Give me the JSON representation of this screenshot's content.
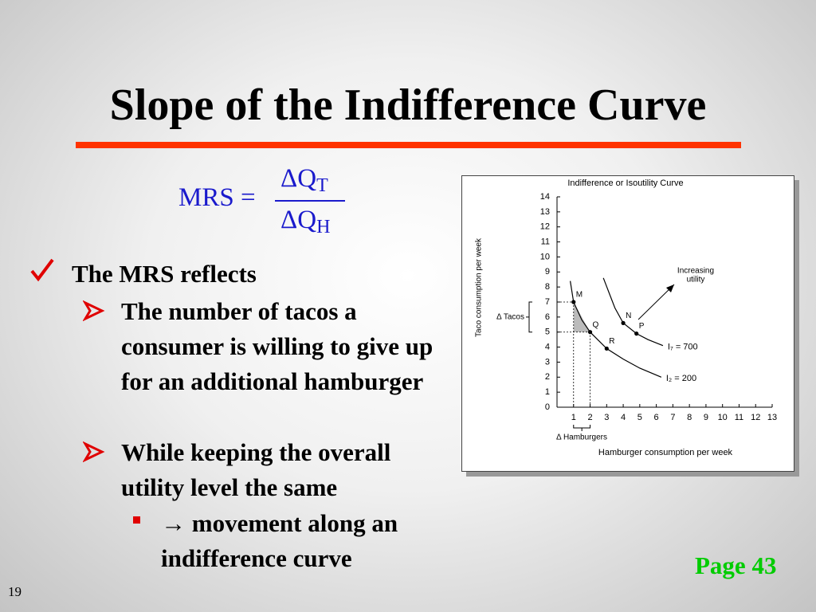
{
  "slide": {
    "title": "Slope of the Indifference Curve",
    "formula": {
      "lhs": "MRS =",
      "numerator": {
        "text": "ΔQ",
        "sub": "T"
      },
      "denominator": {
        "text": "ΔQ",
        "sub": "H"
      }
    },
    "bullet": "The MRS reflects",
    "subbullets": [
      {
        "text": "The number of tacos a consumer is willing to give up for an additional hamburger"
      },
      {
        "text": "While keeping the overall utility level the same",
        "subbullets": [
          "→ movement along an indifference curve"
        ]
      }
    ],
    "page_ref": "Page 43",
    "slide_number": "19"
  },
  "chart_data": {
    "type": "line",
    "title": "Indifference or Isoutility Curve",
    "xlabel": "Hamburger consumption per week",
    "ylabel": "Taco consumption per week",
    "xlim": [
      0,
      13
    ],
    "ylim": [
      0,
      14
    ],
    "xticks": [
      1,
      2,
      3,
      4,
      5,
      6,
      7,
      8,
      9,
      10,
      11,
      12,
      13
    ],
    "yticks": [
      0,
      1,
      2,
      3,
      4,
      5,
      6,
      7,
      8,
      9,
      10,
      11,
      12,
      13,
      14
    ],
    "series": [
      {
        "name": "I₇ = 700",
        "color": "#000000",
        "x": [
          2.8,
          3.5,
          4,
          4.8,
          5.5,
          6.4
        ],
        "values": [
          8.6,
          6.6,
          5.6,
          4.9,
          4.5,
          4.1
        ]
      },
      {
        "name": "I₂ = 200",
        "color": "#000000",
        "x": [
          0.8,
          1,
          1.5,
          2,
          3,
          4,
          5,
          6.3
        ],
        "values": [
          8.4,
          7,
          5.8,
          5,
          3.9,
          3.2,
          2.6,
          2.0
        ]
      }
    ],
    "points": [
      {
        "name": "M",
        "x": 1,
        "y": 7
      },
      {
        "name": "Q",
        "x": 2,
        "y": 5
      },
      {
        "name": "R",
        "x": 3,
        "y": 3.9
      },
      {
        "name": "N",
        "x": 4,
        "y": 5.6
      },
      {
        "name": "P",
        "x": 4.8,
        "y": 4.9
      }
    ],
    "annotations": {
      "increasing": [
        "Increasing",
        "utility"
      ],
      "delta_y": "Δ Tacos",
      "delta_x": "Δ Hamburgers"
    }
  }
}
